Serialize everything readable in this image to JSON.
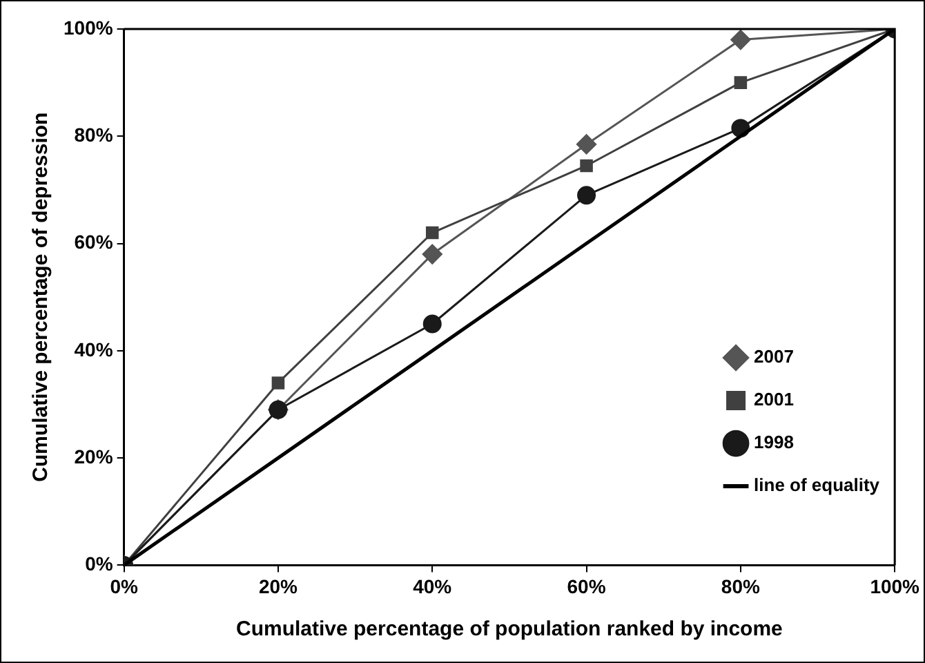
{
  "chart_data": {
    "type": "line",
    "xlabel": "Cumulative percentage of population ranked by income",
    "ylabel": "Cumulative percentage of depression",
    "x": [
      0,
      20,
      40,
      60,
      80,
      100
    ],
    "series": [
      {
        "name": "2007",
        "color": "#555555",
        "marker": "diamond",
        "values": [
          0,
          29,
          58,
          78.5,
          98,
          100
        ]
      },
      {
        "name": "2001",
        "color": "#404040",
        "marker": "square",
        "values": [
          0,
          34,
          62,
          74.5,
          90,
          100
        ]
      },
      {
        "name": "1998",
        "color": "#1a1a1a",
        "marker": "circle",
        "values": [
          0,
          29,
          45,
          69,
          81.5,
          100
        ]
      },
      {
        "name": "line of equality",
        "color": "#000000",
        "marker": "none",
        "values": [
          0,
          20,
          40,
          60,
          80,
          100
        ]
      }
    ],
    "xlim": [
      0,
      100
    ],
    "ylim": [
      0,
      100
    ],
    "xticks": [
      {
        "value": 0,
        "label": "0%"
      },
      {
        "value": 20,
        "label": "20%"
      },
      {
        "value": 40,
        "label": "40%"
      },
      {
        "value": 60,
        "label": "60%"
      },
      {
        "value": 80,
        "label": "80%"
      },
      {
        "value": 100,
        "label": "100%"
      }
    ],
    "yticks": [
      {
        "value": 0,
        "label": "0%"
      },
      {
        "value": 20,
        "label": "20%"
      },
      {
        "value": 40,
        "label": "40%"
      },
      {
        "value": 60,
        "label": "60%"
      },
      {
        "value": 80,
        "label": "80%"
      },
      {
        "value": 100,
        "label": "100%"
      }
    ],
    "grid": false,
    "legend": "right"
  }
}
